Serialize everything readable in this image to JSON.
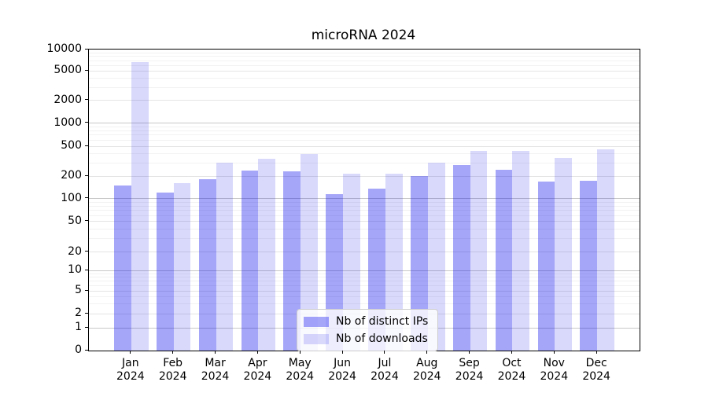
{
  "chart_data": {
    "type": "bar",
    "title": "microRNA 2024",
    "categories": [
      "Jan",
      "Feb",
      "Mar",
      "Apr",
      "May",
      "Jun",
      "Jul",
      "Aug",
      "Sep",
      "Oct",
      "Nov",
      "Dec"
    ],
    "year_label": "2024",
    "series": [
      {
        "name": "Nb of distinct IPs",
        "color": "rgba(0,0,238,0.35)",
        "values": [
          150,
          120,
          185,
          240,
          235,
          115,
          135,
          200,
          285,
          245,
          170,
          172
        ]
      },
      {
        "name": "Nb of downloads",
        "color": "rgba(0,0,238,0.15)",
        "values": [
          6700,
          160,
          305,
          345,
          395,
          215,
          215,
          305,
          430,
          430,
          350,
          450
        ]
      }
    ],
    "y_ticks": [
      0,
      1,
      2,
      5,
      10,
      20,
      50,
      100,
      200,
      500,
      1000,
      2000,
      5000,
      10000
    ],
    "ylim": [
      0,
      10000
    ],
    "scale": "symlog",
    "grid": "both",
    "grid_major_color": "#c8c8c8",
    "grid_sub_color": "#e4e4e4",
    "grid_minor_color": "#f2f2f2",
    "legend_position": "lower center"
  }
}
